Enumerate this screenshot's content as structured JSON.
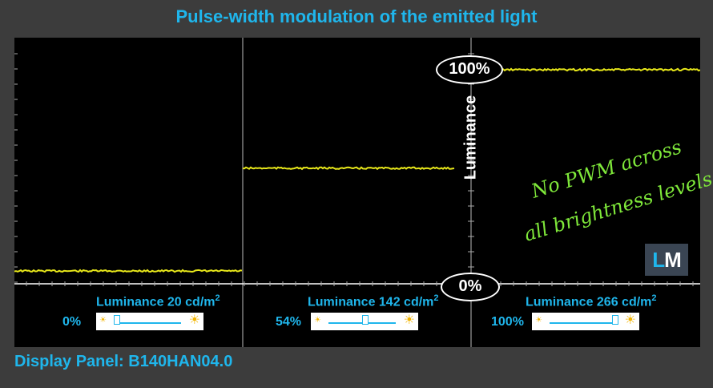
{
  "title": "Pulse-width modulation of the emitted light",
  "axis_label": "Luminance",
  "badge_top": "100%",
  "badge_bottom": "0%",
  "annotation_line1": "No PWM across",
  "annotation_line2": "all brightness levels",
  "logo": {
    "l": "L",
    "m": "M"
  },
  "footer": "Display Panel: B140HAN04.0",
  "colors": {
    "accent": "#1fb6ec",
    "trace": "#e8e81a",
    "annotation": "#7fe83a",
    "grid": "#ffffff"
  },
  "panels": [
    {
      "label": "Luminance 20 cd/m",
      "sup": "2",
      "percent": "0%",
      "slider_level": 0.0
    },
    {
      "label": "Luminance 142 cd/m",
      "sup": "2",
      "percent": "54%",
      "slider_level": 0.54
    },
    {
      "label": "Luminance 266 cd/m",
      "sup": "2",
      "percent": "100%",
      "slider_level": 1.0
    }
  ],
  "chart_data": {
    "type": "line",
    "title": "Pulse-width modulation of the emitted light",
    "ylabel": "Luminance",
    "ylim": [
      0,
      100
    ],
    "series": [
      {
        "values": [
          6,
          6,
          6
        ]
      },
      {
        "values": [
          54,
          54,
          54
        ]
      },
      {
        "values": [
          100,
          100,
          100
        ]
      }
    ]
  }
}
